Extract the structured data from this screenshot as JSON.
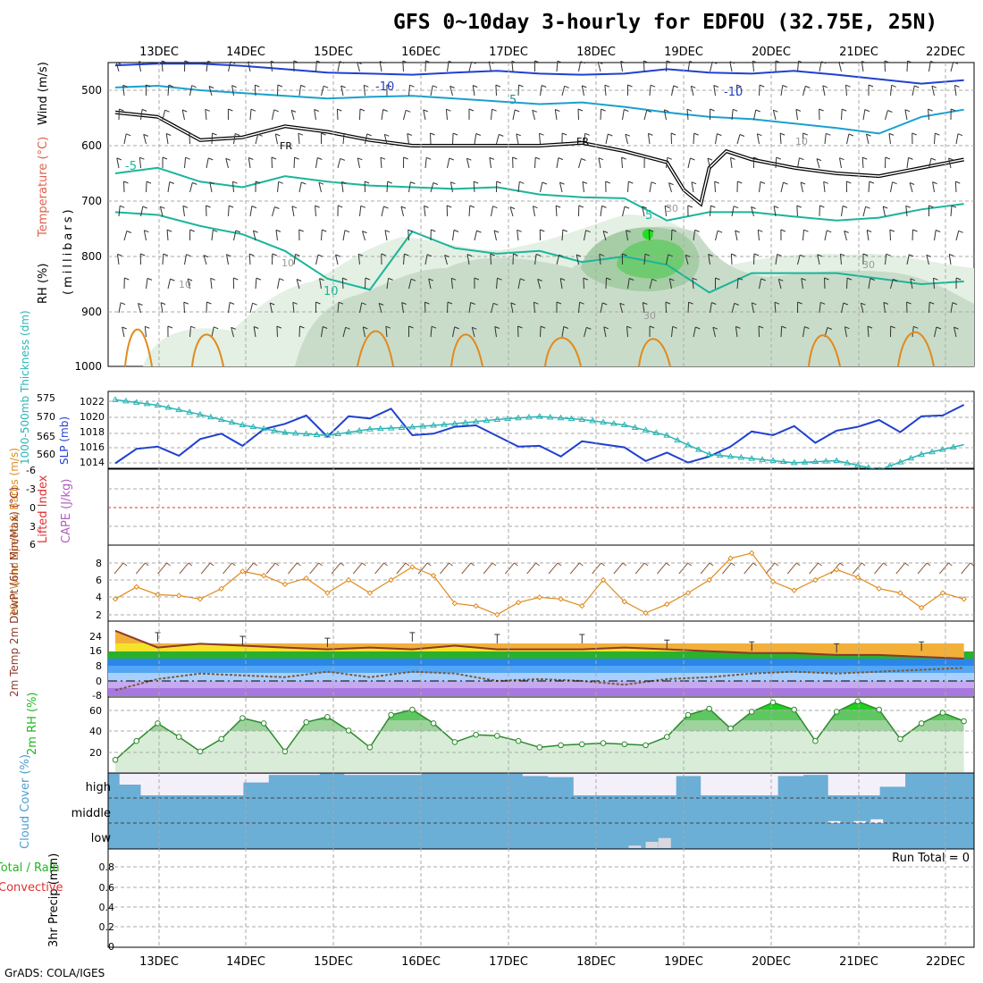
{
  "title": "GFS 0~10day 3-hourly for EDFOU (32.75E, 25N)",
  "credit": "GrADS: COLA/IGES",
  "colors": {
    "slp": "#1f3fd0",
    "thickness": "#2ab4b4",
    "wind": "#e08a1e",
    "temp": "#8b3a2a",
    "dewpoint": "#7a5a3a",
    "rh": "#1fb81f",
    "cloud_bg": "#6baed6",
    "cloud_fill": "#f4f0fa",
    "lifted": "#e03030",
    "cape": "#b060c0"
  },
  "chart_data": [
    {
      "type": "line",
      "panel": "upper-air",
      "ylabel": "(millibars)",
      "ylabels": [
        "RH (%)",
        "Temperature (°C)",
        "Wind (m/s)"
      ],
      "y_ticks": [
        "500",
        "600",
        "700",
        "800",
        "900",
        "1000"
      ],
      "x_ticks_top": [
        "13DEC",
        "14DEC",
        "15DEC",
        "16DEC",
        "17DEC",
        "18DEC",
        "19DEC",
        "20DEC",
        "21DEC",
        "22DEC"
      ],
      "contour_labels": [
        "-10",
        "-10",
        "5",
        "FR",
        "FR",
        "-5",
        "5",
        "10",
        "10",
        "10",
        "30",
        "30",
        "10",
        "30"
      ],
      "isotherms": [
        {
          "name": "-10",
          "x": [
            0,
            0.5,
            1,
            1.5,
            2,
            2.5,
            3,
            3.5,
            4,
            4.5,
            5,
            5.5,
            6,
            6.5,
            7,
            7.5,
            8,
            8.5,
            9,
            9.5,
            10
          ],
          "p": [
            455,
            452,
            452,
            456,
            462,
            468,
            470,
            472,
            468,
            465,
            470,
            472,
            470,
            462,
            468,
            470,
            465,
            472,
            480,
            488,
            482
          ]
        },
        {
          "name": "-5",
          "x": [
            0,
            0.5,
            1,
            1.5,
            2,
            2.5,
            3,
            3.5,
            4,
            4.5,
            5,
            5.5,
            6,
            6.5,
            7,
            7.5,
            8,
            8.5,
            9,
            9.5,
            10
          ],
          "p": [
            495,
            492,
            500,
            505,
            510,
            515,
            512,
            510,
            515,
            520,
            525,
            522,
            530,
            540,
            548,
            552,
            560,
            568,
            578,
            548,
            535
          ]
        },
        {
          "name": "FR",
          "x": [
            0,
            0.5,
            1,
            1.5,
            2,
            2.5,
            3,
            3.5,
            4,
            4.5,
            5,
            5.5,
            6,
            6.5,
            6.7,
            6.9,
            7,
            7.2,
            7.5,
            8,
            8.5,
            9,
            9.5,
            10
          ],
          "p": [
            540,
            548,
            590,
            585,
            565,
            575,
            590,
            600,
            600,
            600,
            600,
            595,
            610,
            630,
            680,
            705,
            640,
            610,
            625,
            640,
            650,
            655,
            640,
            625
          ]
        },
        {
          "name": "5",
          "x": [
            0,
            0.5,
            1,
            1.5,
            2,
            2.5,
            3,
            3.5,
            4,
            4.5,
            5,
            5.5,
            6,
            6.5,
            7,
            7.5,
            8,
            8.5,
            9,
            9.5,
            10
          ],
          "p": [
            650,
            640,
            665,
            675,
            655,
            665,
            672,
            675,
            678,
            675,
            688,
            693,
            695,
            735,
            720,
            720,
            728,
            735,
            730,
            715,
            705
          ]
        },
        {
          "name": "10",
          "x": [
            0,
            0.5,
            1,
            1.5,
            2,
            2.5,
            3,
            3.5,
            4,
            4.5,
            5,
            5.5,
            6,
            6.5,
            7,
            7.5,
            8,
            8.5,
            9,
            9.5,
            10
          ],
          "p": [
            720,
            725,
            745,
            760,
            790,
            840,
            860,
            755,
            785,
            795,
            790,
            810,
            800,
            815,
            865,
            830,
            830,
            830,
            840,
            850,
            845
          ]
        }
      ]
    },
    {
      "type": "line",
      "panel": "slp-thickness",
      "ylabel_left": "1000-500mb Thickness (dm)",
      "ylabel_right": "SLP (mb)",
      "y_ticks_left": [
        "575",
        "570",
        "565",
        "560"
      ],
      "y_ticks_right": [
        "1022",
        "1020",
        "1018",
        "1016",
        "1014"
      ],
      "series": [
        {
          "name": "SLP (mb)",
          "x": [
            0,
            0.25,
            0.5,
            0.75,
            1,
            1.25,
            1.5,
            1.75,
            2,
            2.25,
            2.5,
            2.75,
            3,
            3.25,
            3.5,
            3.75,
            4,
            4.25,
            4.5,
            4.75,
            5,
            5.25,
            5.5,
            5.75,
            6,
            6.25,
            6.5,
            6.75,
            7,
            7.25,
            7.5,
            7.75,
            8,
            8.25,
            8.5,
            8.75,
            9,
            9.25,
            9.5,
            9.75,
            10
          ],
          "values": [
            1014.3,
            1016.2,
            1016.5,
            1015.3,
            1017.5,
            1018.2,
            1016.6,
            1018.8,
            1019.5,
            1020.6,
            1017.8,
            1020.5,
            1020.2,
            1021.5,
            1018.0,
            1018.2,
            1019.1,
            1019.3,
            1017.9,
            1016.5,
            1016.6,
            1015.2,
            1017.2,
            1016.8,
            1016.4,
            1014.6,
            1015.7,
            1014.4,
            1015.2,
            1016.5,
            1018.5,
            1018.0,
            1019.2,
            1017.0,
            1018.6,
            1019.1,
            1020.0,
            1018.4,
            1020.5,
            1020.6,
            1022.0
          ]
        },
        {
          "name": "1000-500mb Thickness (dm)",
          "x": [
            0,
            0.5,
            1,
            1.5,
            2,
            2.5,
            3,
            3.5,
            4,
            4.5,
            5,
            5.5,
            6,
            6.5,
            7,
            7.5,
            8,
            8.5,
            9,
            9.5,
            10
          ],
          "values": [
            574.5,
            573.2,
            571.0,
            568.5,
            566.7,
            566.0,
            567.5,
            568.0,
            568.8,
            569.8,
            570.5,
            569.8,
            568.5,
            566.0,
            561.5,
            560.5,
            559.5,
            560.0,
            557.8,
            561.5,
            563.8
          ]
        }
      ]
    },
    {
      "type": "line",
      "panel": "stability",
      "ylabels": [
        "Lifted Index",
        "CAPE (J/kg)"
      ],
      "y_ticks": [
        "-6",
        "-3",
        "0",
        "3",
        "6"
      ],
      "series": [
        {
          "name": "Lifted Index zero line",
          "x": [
            0,
            10
          ],
          "values": [
            0,
            0
          ]
        }
      ]
    },
    {
      "type": "line",
      "panel": "10m-wind",
      "ylabel": "10m Wind Speed & Barbs (m/s)",
      "y_ticks": [
        "8",
        "6",
        "4",
        "2"
      ],
      "series": [
        {
          "name": "Speed (m/s)",
          "x": [
            0,
            0.25,
            0.5,
            0.75,
            1,
            1.25,
            1.5,
            1.75,
            2,
            2.25,
            2.5,
            2.75,
            3,
            3.25,
            3.5,
            3.75,
            4,
            4.25,
            4.5,
            4.75,
            5,
            5.25,
            5.5,
            5.75,
            6,
            6.25,
            6.5,
            6.75,
            7,
            7.25,
            7.5,
            7.75,
            8,
            8.25,
            8.5,
            8.75,
            9,
            9.25,
            9.5,
            9.75,
            10
          ],
          "values": [
            3.8,
            5.2,
            4.3,
            4.2,
            3.8,
            5.0,
            7.0,
            6.5,
            5.5,
            6.2,
            4.5,
            6.0,
            4.5,
            6.0,
            7.5,
            6.5,
            3.3,
            3.0,
            2.0,
            3.4,
            4.0,
            3.8,
            3.0,
            6.0,
            3.5,
            2.2,
            3.2,
            4.5,
            6.0,
            8.5,
            9.1,
            5.8,
            4.8,
            6.0,
            7.2,
            6.3,
            5.0,
            4.5,
            2.8,
            4.5,
            3.8
          ]
        }
      ]
    },
    {
      "type": "area",
      "panel": "2m-temp",
      "ylabel": "2m Temp 2m DewPt (6hr Min/Max) (°C)",
      "y_ticks": [
        "24",
        "16",
        "8",
        "0",
        "-8"
      ],
      "series": [
        {
          "name": "2m Temp (°C)",
          "x": [
            0,
            0.5,
            1,
            1.5,
            2,
            2.5,
            3,
            3.5,
            4,
            4.5,
            5,
            5.5,
            6,
            6.5,
            7,
            7.5,
            8,
            8.5,
            9,
            9.5,
            10
          ],
          "values": [
            27,
            18,
            20,
            19,
            18,
            17,
            18,
            17,
            19,
            17,
            17,
            17,
            18,
            17,
            16,
            15,
            15,
            14,
            14,
            13,
            12
          ]
        },
        {
          "name": "2m Temp max",
          "x": [
            0.5,
            1.5,
            2.5,
            3.5,
            4.5,
            5.5,
            6.5,
            7.5,
            8.5,
            9.5
          ],
          "values": [
            26,
            24,
            23,
            26,
            25,
            25,
            22,
            21,
            20,
            21
          ]
        },
        {
          "name": "2m DewPt (°C)",
          "x": [
            0,
            0.5,
            1,
            1.5,
            2,
            2.5,
            3,
            3.5,
            4,
            4.5,
            5,
            5.5,
            6,
            6.5,
            7,
            7.5,
            8,
            8.5,
            9,
            9.5,
            10
          ],
          "values": [
            -5,
            1,
            4,
            3,
            2,
            5,
            2,
            5,
            4,
            0,
            1,
            0,
            -2,
            1,
            2,
            4,
            5,
            4,
            5,
            6,
            7
          ]
        }
      ]
    },
    {
      "type": "area",
      "panel": "2m-rh",
      "ylabel": "2m RH (%)",
      "y_ticks": [
        "60",
        "40",
        "20"
      ],
      "series": [
        {
          "name": "2m RH (%)",
          "x": [
            0,
            0.25,
            0.5,
            0.75,
            1,
            1.25,
            1.5,
            1.75,
            2,
            2.25,
            2.5,
            2.75,
            3,
            3.25,
            3.5,
            3.75,
            4,
            4.25,
            4.5,
            4.75,
            5,
            5.25,
            5.5,
            5.75,
            6,
            6.25,
            6.5,
            6.75,
            7,
            7.25,
            7.5,
            7.75,
            8,
            8.25,
            8.5,
            8.75,
            9,
            9.25,
            9.5,
            9.75,
            10
          ],
          "values": [
            10,
            28,
            45,
            32,
            18,
            30,
            50,
            45,
            18,
            46,
            51,
            38,
            22,
            53,
            58,
            45,
            27,
            34,
            33,
            28,
            22,
            24,
            25,
            26,
            25,
            24,
            32,
            53,
            59,
            40,
            56,
            65,
            58,
            28,
            56,
            66,
            58,
            30,
            45,
            55,
            47
          ]
        }
      ]
    },
    {
      "type": "bar",
      "panel": "cloud-cover",
      "ylabel": "Cloud Cover (%)",
      "categories": [
        "high",
        "middle",
        "low"
      ],
      "series": [
        {
          "name": "high",
          "x": [
            0.05,
            0.3,
            0.6,
            0.9,
            1.2,
            1.5,
            1.8,
            2.1,
            2.4,
            2.7,
            3.0,
            3.3,
            3.6,
            3.9,
            4.2,
            4.5,
            4.8,
            5.1,
            5.4,
            5.7,
            6.0,
            6.3,
            6.6,
            6.9,
            7.2,
            7.5,
            7.8,
            8.1,
            8.4,
            8.7,
            9.0,
            9.3,
            9.6,
            9.9
          ],
          "values": [
            50,
            100,
            100,
            100,
            100,
            40,
            5,
            5,
            0,
            5,
            5,
            5,
            0,
            0,
            0,
            0,
            10,
            15,
            100,
            100,
            100,
            100,
            10,
            100,
            100,
            100,
            10,
            5,
            100,
            100,
            60,
            0,
            0,
            0
          ]
        },
        {
          "name": "middle",
          "x": [
            8.4,
            8.7,
            8.9
          ],
          "values": [
            8,
            8,
            15
          ]
        },
        {
          "name": "low",
          "x": [
            6.05,
            6.25,
            6.4
          ],
          "values": [
            10,
            25,
            40
          ]
        }
      ]
    },
    {
      "type": "bar",
      "panel": "3hr-precip",
      "ylabel": "3hr Precip (mm)",
      "ylabels": [
        "Total / Rain",
        "Convective"
      ],
      "annotation": "Run Total = 0",
      "y_ticks": [
        "0.8",
        "0.6",
        "0.4",
        "0.2",
        "0"
      ],
      "x_ticks_bottom": [
        "13DEC",
        "14DEC",
        "15DEC",
        "16DEC",
        "17DEC",
        "18DEC",
        "19DEC",
        "20DEC",
        "21DEC",
        "22DEC"
      ],
      "series": [
        {
          "name": "Total",
          "values": [
            0
          ]
        }
      ]
    }
  ]
}
